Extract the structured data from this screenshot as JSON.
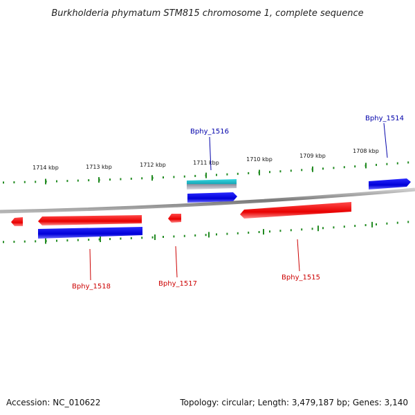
{
  "title": "Burkholderia phymatum STM815 chromosome 1, complete sequence",
  "footer": {
    "accession": "Accession: NC_010622",
    "topology": "Topology: circular; Length: 3,479,187 bp; Genes: 3,140"
  },
  "scale_labels": [
    "1714 kbp",
    "1713 kbp",
    "1712 kbp",
    "1711 kbp",
    "1710 kbp",
    "1709 kbp",
    "1708 kbp"
  ],
  "genes": [
    {
      "name": "Bphy_1514",
      "strand": "forward"
    },
    {
      "name": "Bphy_1515",
      "strand": "reverse"
    },
    {
      "name": "Bphy_1516",
      "strand": "forward"
    },
    {
      "name": "Bphy_1517",
      "strand": "reverse"
    },
    {
      "name": "Bphy_1518",
      "strand": "reverse"
    }
  ],
  "colors": {
    "forward_gene": "#0000dd",
    "reverse_gene": "#ee0000",
    "forward_label": "#0000aa",
    "reverse_label": "#cc0000",
    "ticks": "#228b22",
    "backbone": "#808080",
    "cds_highlight": "#22b8c8"
  }
}
